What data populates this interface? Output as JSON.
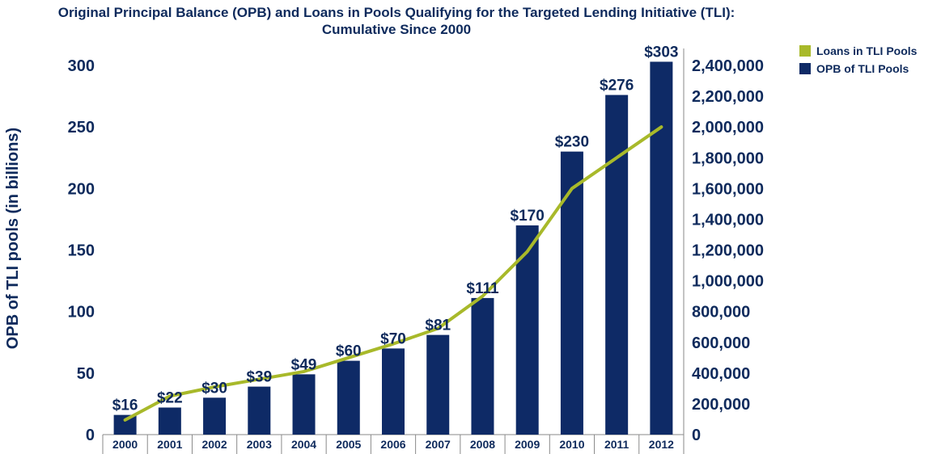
{
  "chart_data": {
    "type": "bar+line",
    "title_line1": "Original Principal Balance (OPB) and Loans in Pools Qualifying for the Targeted Lending Initiative (TLI):",
    "title_line2": "Cumulative Since 2000",
    "ylabel_left": "OPB of TLI pools (in billions)",
    "ylabel_right": "",
    "xlabel": "",
    "categories": [
      "2000",
      "2001",
      "2002",
      "2003",
      "2004",
      "2005",
      "2006",
      "2007",
      "2008",
      "2009",
      "2010",
      "2011",
      "2012"
    ],
    "ylim_left": [
      0,
      300
    ],
    "ylim_right": [
      0,
      2400000
    ],
    "left_ticks": [
      {
        "value": 0,
        "label": "0"
      },
      {
        "value": 50,
        "label": "50"
      },
      {
        "value": 100,
        "label": "100"
      },
      {
        "value": 150,
        "label": "150"
      },
      {
        "value": 200,
        "label": "200"
      },
      {
        "value": 250,
        "label": "250"
      },
      {
        "value": 300,
        "label": "300"
      }
    ],
    "right_ticks": [
      {
        "value": 0,
        "label": "0"
      },
      {
        "value": 200000,
        "label": "200,000"
      },
      {
        "value": 400000,
        "label": "400,000"
      },
      {
        "value": 600000,
        "label": "600,000"
      },
      {
        "value": 800000,
        "label": "800,000"
      },
      {
        "value": 1000000,
        "label": "1,000,000"
      },
      {
        "value": 1200000,
        "label": "1,200,000"
      },
      {
        "value": 1400000,
        "label": "1,400,000"
      },
      {
        "value": 1600000,
        "label": "1,600,000"
      },
      {
        "value": 1800000,
        "label": "1,800,000"
      },
      {
        "value": 2000000,
        "label": "2,000,000"
      },
      {
        "value": 2200000,
        "label": "2,200,000"
      },
      {
        "value": 2400000,
        "label": "2,400,000"
      }
    ],
    "series": [
      {
        "name": "OPB of TLI Pools",
        "kind": "bar",
        "axis": "left",
        "color": "#0e2a66",
        "values": [
          16,
          22,
          30,
          39,
          49,
          60,
          70,
          81,
          111,
          170,
          230,
          276,
          303
        ],
        "labels": [
          "$16",
          "$22",
          "$30",
          "$39",
          "$49",
          "$60",
          "$70",
          "$81",
          "$111",
          "$170",
          "$230",
          "$276",
          "$303"
        ]
      },
      {
        "name": "Loans in TLI Pools",
        "kind": "line",
        "axis": "right",
        "color": "#a8b92a",
        "values": [
          95000,
          250000,
          310000,
          360000,
          410000,
          500000,
          590000,
          690000,
          900000,
          1190000,
          1600000,
          1800000,
          2000000
        ]
      }
    ],
    "legend": [
      {
        "name": "Loans in TLI Pools",
        "color": "#a8b92a"
      },
      {
        "name": "OPB of TLI Pools",
        "color": "#0e2a66"
      }
    ],
    "legend_position": "top-right",
    "grid": false
  }
}
